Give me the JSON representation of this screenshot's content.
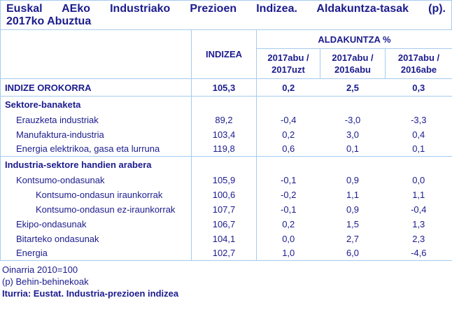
{
  "title": {
    "line1": "Euskal AEko Industriako Prezioen Indizea. Aldakuntza-tasak (p).",
    "line2": "2017ko Abuztua"
  },
  "header": {
    "index_label": "INDIZEA",
    "change_label": "ALDAKUNTZA %",
    "periods": [
      "2017abu /\n2017uzt",
      "2017abu /\n2016abu",
      "2017abu /\n2016abe"
    ]
  },
  "rows": [
    {
      "label": "INDIZE OROKORRA",
      "values": [
        "105,3",
        "0,2",
        "2,5",
        "0,3"
      ]
    },
    {
      "label": "Sektore-banaketa",
      "values": [
        "",
        "",
        "",
        ""
      ]
    },
    {
      "label": "Erauzketa industriak",
      "values": [
        "89,2",
        "-0,4",
        "-3,0",
        "-3,3"
      ]
    },
    {
      "label": "Manufaktura-industria",
      "values": [
        "103,4",
        "0,2",
        "3,0",
        "0,4"
      ]
    },
    {
      "label": "Energia elektrikoa, gasa eta lurruna",
      "values": [
        "119,8",
        "0,6",
        "0,1",
        "0,1"
      ]
    },
    {
      "label": "Industria-sektore handien arabera",
      "values": [
        "",
        "",
        "",
        ""
      ]
    },
    {
      "label": "Kontsumo-ondasunak",
      "values": [
        "105,9",
        "-0,1",
        "0,9",
        "0,0"
      ]
    },
    {
      "label": "Kontsumo-ondasun iraunkorrak",
      "values": [
        "100,6",
        "-0,2",
        "1,1",
        "1,1"
      ]
    },
    {
      "label": "Kontsumo-ondasun ez-iraunkorrak",
      "values": [
        "107,7",
        "-0,1",
        "0,9",
        "-0,4"
      ]
    },
    {
      "label": "Ekipo-ondasunak",
      "values": [
        "106,7",
        "0,2",
        "1,5",
        "1,3"
      ]
    },
    {
      "label": "Bitarteko ondasunak",
      "values": [
        "104,1",
        "0,0",
        "2,7",
        "2,3"
      ]
    },
    {
      "label": "Energia",
      "values": [
        "102,7",
        "1,0",
        "6,0",
        "-4,6"
      ]
    }
  ],
  "footnotes": {
    "base": "Oinarria 2010=100",
    "provisional": "(p) Behin-behinekoak",
    "source": "Iturria: Eustat. Industria-prezioen indizea"
  },
  "colors": {
    "text_navy": "#1b1b8e",
    "border_blue": "#a6cbee",
    "background": "#ffffff"
  }
}
